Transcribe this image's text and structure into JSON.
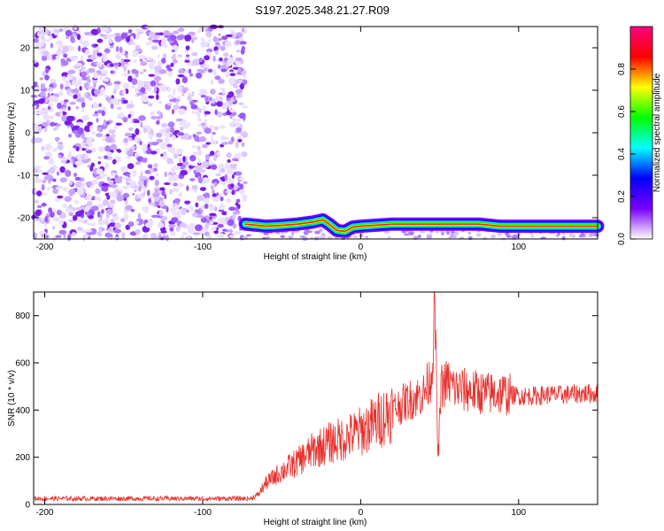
{
  "title": "S197.2025.348.21.27.R09",
  "chart_data": [
    {
      "type": "heatmap",
      "xlabel": "Height of straight line (km)",
      "ylabel": "Frequency (Hz)",
      "xlim": [
        -207,
        150
      ],
      "ylim": [
        -25,
        25
      ],
      "xticks": [
        -200,
        -100,
        0,
        100
      ],
      "yticks": [
        -20,
        -10,
        0,
        10,
        20
      ],
      "colorbar": {
        "label": "Normalized spectral amplitude",
        "range": [
          0,
          1
        ],
        "ticks": [
          "0.0",
          "0.2",
          "0.4",
          "0.6",
          "0.8"
        ],
        "colors": [
          "#ffffff",
          "#7a00ff",
          "#0000ff",
          "#00ffff",
          "#00ff00",
          "#ffff00",
          "#ff0000",
          "#ff0080"
        ]
      },
      "noise_region": {
        "x_range": [
          -207,
          -73
        ],
        "freq_range": [
          -25,
          25
        ]
      },
      "signal_track": {
        "x": [
          -73,
          -60,
          -50,
          -40,
          -30,
          -24,
          -20,
          -15,
          -10,
          -5,
          0,
          20,
          40,
          60,
          75,
          88,
          100,
          120,
          150
        ],
        "freq_hz": [
          -21.5,
          -22,
          -21.8,
          -21.5,
          -21,
          -20.5,
          -21.5,
          -23,
          -23.2,
          -22.2,
          -22,
          -21.5,
          -21.5,
          -21.5,
          -21.5,
          -22,
          -22,
          -22,
          -22
        ]
      }
    },
    {
      "type": "line",
      "xlabel": "Height of straight line (km)",
      "ylabel": "SNR (10 * v/v)",
      "xlim": [
        -207,
        150
      ],
      "ylim": [
        0,
        900
      ],
      "xticks": [
        -200,
        -100,
        0,
        100
      ],
      "yticks": [
        0,
        200,
        400,
        600,
        800
      ],
      "color": "#e8302c",
      "series": [
        {
          "x": [
            -207,
            -150,
            -100,
            -70,
            -65,
            -60,
            -50,
            -40,
            -30,
            -20,
            -10,
            0,
            10,
            20,
            30,
            40,
            45,
            47,
            49,
            51,
            55,
            60,
            70,
            80,
            90,
            100,
            110,
            120,
            130,
            140,
            150
          ],
          "values": [
            25,
            25,
            25,
            25,
            40,
            90,
            140,
            180,
            230,
            260,
            280,
            310,
            350,
            400,
            440,
            470,
            550,
            850,
            180,
            500,
            520,
            490,
            480,
            470,
            470,
            460,
            460,
            465,
            465,
            470,
            470
          ]
        }
      ]
    }
  ]
}
